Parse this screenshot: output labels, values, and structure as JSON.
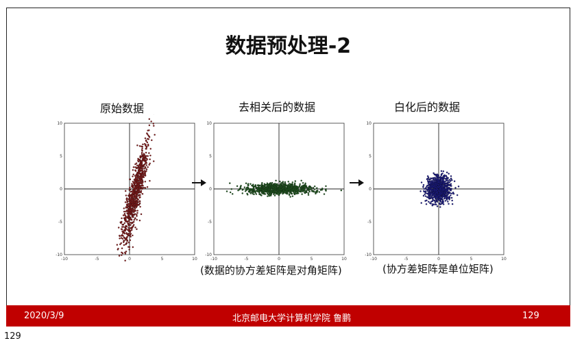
{
  "slide": {
    "title": "数据预处理-2",
    "panels": [
      {
        "title": "原始数据",
        "caption": "",
        "color": "#8b1a1a"
      },
      {
        "title": "去相关后的数据",
        "caption": "(数据的协方差矩阵是对角矩阵)",
        "color": "#1f5a1f"
      },
      {
        "title": "白化后的数据",
        "caption": "(协方差矩阵是单位矩阵)",
        "color": "#1a1a8b"
      }
    ],
    "axis": {
      "xlim": [
        -10,
        10
      ],
      "ylim": [
        -10,
        10
      ],
      "xticks": [
        "-10",
        "-5",
        "0",
        "5",
        "10"
      ],
      "yticks": [
        "10",
        "5",
        "0",
        "-5",
        "-10"
      ]
    }
  },
  "footer": {
    "date": "2020/3/9",
    "center": "北京邮电大学计算机学院 鲁鹏",
    "page": "129"
  },
  "outer_page_number": "129"
}
